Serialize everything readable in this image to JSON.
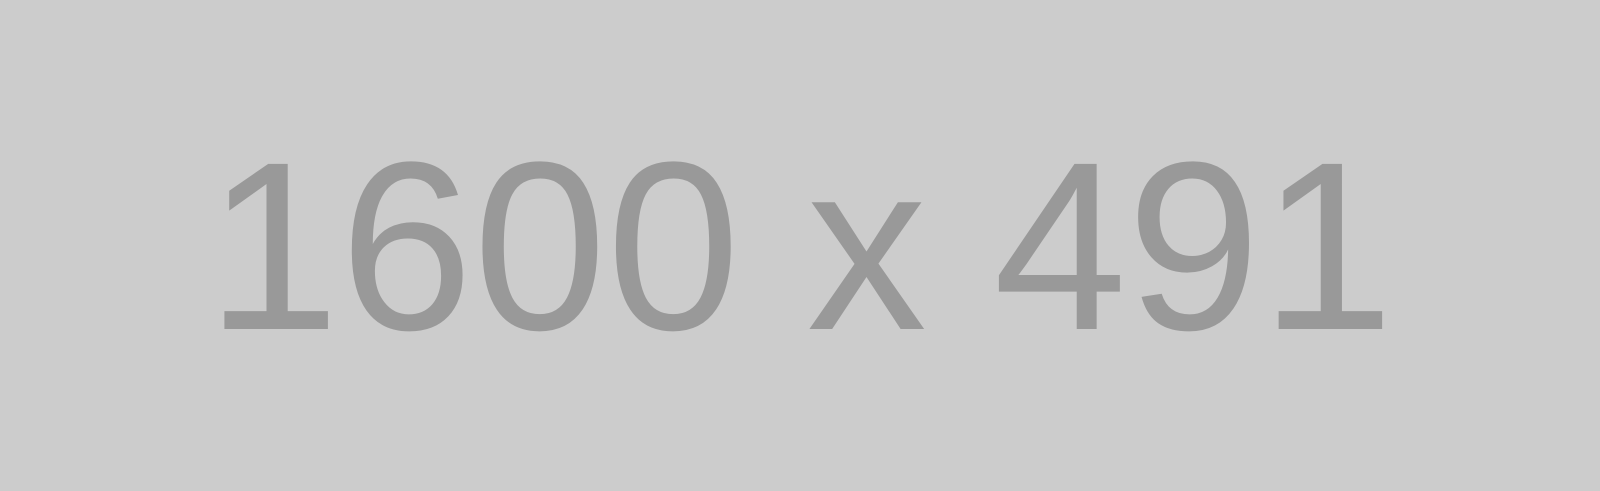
{
  "placeholder": {
    "text": "1600 x 491",
    "background_color": "#cccccc",
    "text_color": "#999999"
  }
}
